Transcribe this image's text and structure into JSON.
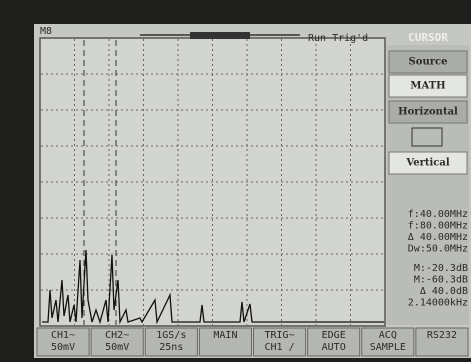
{
  "top_bar": {
    "left": "M8",
    "status": "Run Trig'd",
    "menu_title": "CURSOR"
  },
  "menu": [
    "Source",
    "MATH",
    "Horizontal",
    "Vertical"
  ],
  "readouts": [
    "f:40.00MHz",
    "f:80.00MHz",
    "Δ 40.00MHz",
    "Dw:50.0MHz",
    "M:-20.3dB",
    "M:-60.3dB",
    "Δ  40.0dB",
    "2.14000kHz"
  ],
  "bottom_bar": [
    {
      "lines": [
        "CH1~",
        "50mV"
      ]
    },
    {
      "lines": [
        "CH2~",
        "50mV"
      ]
    },
    {
      "lines": [
        "1GS/s",
        "25ns"
      ]
    },
    {
      "lines": [
        "MAIN"
      ]
    },
    {
      "lines": [
        "TRIG~",
        "CH1 /"
      ]
    },
    {
      "lines": [
        "EDGE",
        "AUTO"
      ]
    },
    {
      "lines": [
        "ACQ",
        "SAMPLE"
      ]
    },
    {
      "lines": [
        "RS232"
      ]
    }
  ]
}
